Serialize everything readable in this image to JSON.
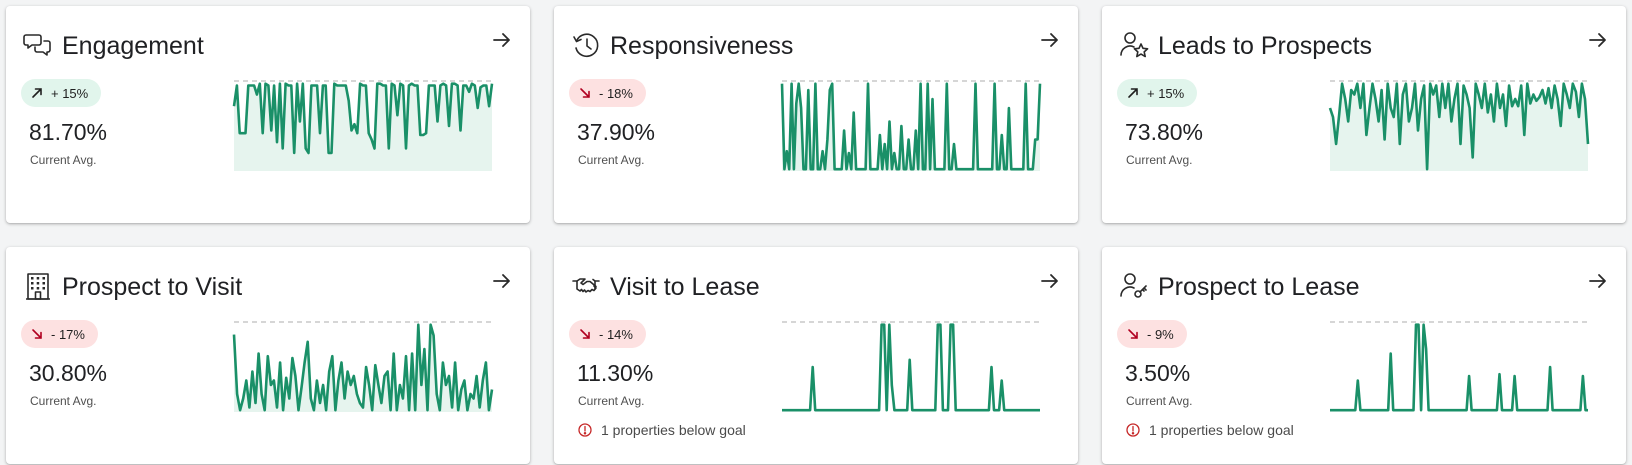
{
  "colors": {
    "line": "#1a9068",
    "fill": "#e6f4ee",
    "up_badge": "#e1f5ec",
    "down_badge": "#fde1e1",
    "down_arrow": "#b00020",
    "warning": "#c62828"
  },
  "cards": [
    {
      "title": "Engagement",
      "icon": "chat-bubbles-icon",
      "trend": "up",
      "badge": "+ 15%",
      "value": "81.70%",
      "value_label": "Current Avg.",
      "warning": null,
      "area": true,
      "series": [
        0.72,
        0.95,
        0.42,
        0.42,
        0.42,
        0.95,
        0.95,
        0.95,
        0.85,
        0.97,
        0.42,
        0.97,
        0.95,
        0.45,
        0.95,
        0.32,
        0.97,
        0.25,
        0.97,
        0.95,
        0.95,
        0.2,
        0.97,
        0.55,
        0.97,
        0.25,
        0.2,
        0.95,
        0.95,
        0.95,
        0.42,
        0.95,
        0.95,
        0.2,
        0.2,
        0.97,
        0.95,
        0.95,
        0.95,
        0.95,
        0.78,
        0.45,
        0.52,
        0.42,
        0.97,
        0.95,
        0.95,
        0.42,
        0.35,
        0.25,
        0.97,
        0.97,
        0.95,
        0.95,
        0.25,
        0.97,
        0.95,
        0.62,
        0.97,
        0.95,
        0.25,
        0.95,
        0.97,
        0.95,
        0.95,
        0.4,
        0.4,
        0.42,
        0.95,
        0.95,
        0.95,
        0.55,
        0.95,
        0.97,
        0.95,
        0.5,
        0.97,
        0.97,
        0.95,
        0.45,
        0.95,
        0.95,
        0.88,
        0.97,
        0.95,
        0.7,
        0.93,
        0.95,
        0.95,
        0.72,
        0.97
      ]
    },
    {
      "title": "Responsiveness",
      "icon": "clock-history-icon",
      "trend": "down",
      "badge": "- 18%",
      "value": "37.90%",
      "value_label": "Current Avg.",
      "warning": null,
      "area": true,
      "series": [
        0.97,
        0.02,
        0.22,
        0.02,
        0.97,
        0.02,
        0.75,
        0.97,
        0.7,
        0.02,
        0.02,
        0.9,
        0.02,
        0.02,
        0.97,
        0.02,
        0.02,
        0.22,
        0.02,
        0.35,
        0.9,
        0.97,
        0.02,
        0.02,
        0.02,
        0.02,
        0.45,
        0.02,
        0.2,
        0.02,
        0.65,
        0.02,
        0.02,
        0.02,
        0.02,
        0.02,
        0.97,
        0.02,
        0.02,
        0.02,
        0.02,
        0.4,
        0.02,
        0.3,
        0.02,
        0.55,
        0.02,
        0.2,
        0.02,
        0.02,
        0.5,
        0.02,
        0.02,
        0.35,
        0.02,
        0.02,
        0.45,
        0.02,
        0.97,
        0.02,
        0.02,
        0.97,
        0.02,
        0.8,
        0.02,
        0.02,
        0.02,
        0.02,
        0.02,
        0.97,
        0.02,
        0.02,
        0.3,
        0.02,
        0.02,
        0.02,
        0.02,
        0.02,
        0.02,
        0.02,
        0.02,
        0.97,
        0.02,
        0.02,
        0.02,
        0.02,
        0.02,
        0.02,
        0.02,
        0.97,
        0.02,
        0.02,
        0.4,
        0.02,
        0.02,
        0.7,
        0.02,
        0.02,
        0.02,
        0.02,
        0.02,
        0.02,
        0.97,
        0.02,
        0.02,
        0.02,
        0.35,
        0.35,
        0.97
      ]
    },
    {
      "title": "Leads to Prospects",
      "icon": "person-star-icon",
      "trend": "up",
      "badge": "+ 15%",
      "value": "73.80%",
      "value_label": "Current Avg.",
      "warning": null,
      "area": true,
      "series": [
        0.7,
        0.6,
        0.3,
        0.62,
        0.97,
        0.8,
        0.55,
        0.9,
        0.85,
        0.97,
        0.7,
        0.97,
        0.4,
        0.7,
        0.97,
        0.8,
        0.55,
        0.9,
        0.35,
        0.97,
        0.7,
        0.6,
        0.97,
        0.3,
        0.85,
        0.97,
        0.55,
        0.7,
        0.97,
        0.45,
        0.8,
        0.95,
        0.02,
        0.97,
        0.85,
        0.95,
        0.6,
        0.97,
        0.7,
        0.97,
        0.55,
        0.8,
        0.97,
        0.3,
        0.95,
        0.85,
        0.7,
        0.15,
        0.97,
        0.85,
        0.7,
        0.97,
        0.65,
        0.85,
        0.55,
        0.97,
        0.7,
        0.85,
        0.5,
        0.95,
        0.72,
        0.8,
        0.72,
        0.95,
        0.4,
        0.97,
        0.75,
        0.85,
        0.78,
        0.82,
        0.9,
        0.75,
        0.92,
        0.7,
        0.95,
        0.8,
        0.5,
        0.97,
        0.85,
        0.7,
        0.97,
        0.88,
        0.6,
        0.97,
        0.8,
        0.3
      ]
    },
    {
      "title": "Prospect to Visit",
      "icon": "office-building-icon",
      "trend": "down",
      "badge": "- 17%",
      "value": "30.80%",
      "value_label": "Current Avg.",
      "warning": null,
      "area": true,
      "series": [
        0.86,
        0.2,
        0.02,
        0.15,
        0.35,
        0.05,
        0.45,
        0.1,
        0.65,
        0.2,
        0.02,
        0.62,
        0.3,
        0.35,
        0.05,
        0.55,
        0.02,
        0.38,
        0.15,
        0.6,
        0.4,
        0.02,
        0.28,
        0.55,
        0.78,
        0.15,
        0.02,
        0.35,
        0.1,
        0.3,
        0.02,
        0.45,
        0.62,
        0.02,
        0.35,
        0.55,
        0.15,
        0.45,
        0.3,
        0.4,
        0.2,
        0.1,
        0.05,
        0.5,
        0.3,
        0.02,
        0.52,
        0.3,
        0.1,
        0.4,
        0.45,
        0.02,
        0.65,
        0.02,
        0.3,
        0.15,
        0.62,
        0.02,
        0.65,
        0.02,
        0.97,
        0.3,
        0.7,
        0.02,
        0.97,
        0.85,
        0.2,
        0.02,
        0.55,
        0.3,
        0.4,
        0.05,
        0.55,
        0.02,
        0.25,
        0.35,
        0.02,
        0.2,
        0.15,
        0.4,
        0.05,
        0.35,
        0.55,
        0.02,
        0.25
      ]
    },
    {
      "title": "Visit to Lease",
      "icon": "handshake-icon",
      "trend": "down",
      "badge": "- 14%",
      "value": "11.30%",
      "value_label": "Current Avg.",
      "warning": "1 properties below goal",
      "area": false,
      "series": [
        0.02,
        0.02,
        0.02,
        0.02,
        0.02,
        0.02,
        0.02,
        0.02,
        0.02,
        0.02,
        0.02,
        0.02,
        0.5,
        0.02,
        0.02,
        0.02,
        0.02,
        0.02,
        0.02,
        0.02,
        0.02,
        0.02,
        0.02,
        0.02,
        0.02,
        0.02,
        0.02,
        0.02,
        0.02,
        0.02,
        0.02,
        0.02,
        0.02,
        0.02,
        0.02,
        0.02,
        0.02,
        0.02,
        0.02,
        0.97,
        0.97,
        0.02,
        0.97,
        0.3,
        0.02,
        0.02,
        0.02,
        0.02,
        0.02,
        0.02,
        0.58,
        0.02,
        0.02,
        0.02,
        0.02,
        0.02,
        0.02,
        0.02,
        0.02,
        0.02,
        0.02,
        0.97,
        0.97,
        0.02,
        0.02,
        0.02,
        0.97,
        0.97,
        0.02,
        0.02,
        0.02,
        0.02,
        0.02,
        0.02,
        0.02,
        0.02,
        0.02,
        0.02,
        0.02,
        0.02,
        0.02,
        0.02,
        0.5,
        0.02,
        0.02,
        0.02,
        0.35,
        0.02,
        0.02,
        0.02,
        0.02,
        0.02,
        0.02,
        0.02,
        0.02,
        0.02,
        0.02,
        0.02,
        0.02,
        0.02,
        0.02,
        0.02
      ]
    },
    {
      "title": "Prospect to Lease",
      "icon": "person-key-icon",
      "trend": "down",
      "badge": "- 9%",
      "value": "3.50%",
      "value_label": "Current Avg.",
      "warning": "1 properties below goal",
      "area": false,
      "series": [
        0.02,
        0.02,
        0.02,
        0.02,
        0.02,
        0.02,
        0.02,
        0.02,
        0.02,
        0.02,
        0.02,
        0.35,
        0.02,
        0.02,
        0.02,
        0.02,
        0.02,
        0.02,
        0.02,
        0.02,
        0.02,
        0.02,
        0.02,
        0.02,
        0.65,
        0.02,
        0.02,
        0.02,
        0.02,
        0.02,
        0.02,
        0.02,
        0.02,
        0.02,
        0.97,
        0.97,
        0.02,
        0.97,
        0.7,
        0.02,
        0.02,
        0.02,
        0.02,
        0.02,
        0.02,
        0.02,
        0.02,
        0.02,
        0.02,
        0.02,
        0.02,
        0.02,
        0.02,
        0.02,
        0.02,
        0.4,
        0.02,
        0.02,
        0.02,
        0.02,
        0.02,
        0.02,
        0.02,
        0.02,
        0.02,
        0.02,
        0.02,
        0.42,
        0.02,
        0.02,
        0.02,
        0.02,
        0.02,
        0.4,
        0.02,
        0.02,
        0.02,
        0.02,
        0.02,
        0.02,
        0.02,
        0.02,
        0.02,
        0.02,
        0.02,
        0.02,
        0.02,
        0.5,
        0.02,
        0.02,
        0.02,
        0.02,
        0.02,
        0.02,
        0.02,
        0.02,
        0.02,
        0.02,
        0.02,
        0.02,
        0.4,
        0.02,
        0.02
      ]
    }
  ]
}
